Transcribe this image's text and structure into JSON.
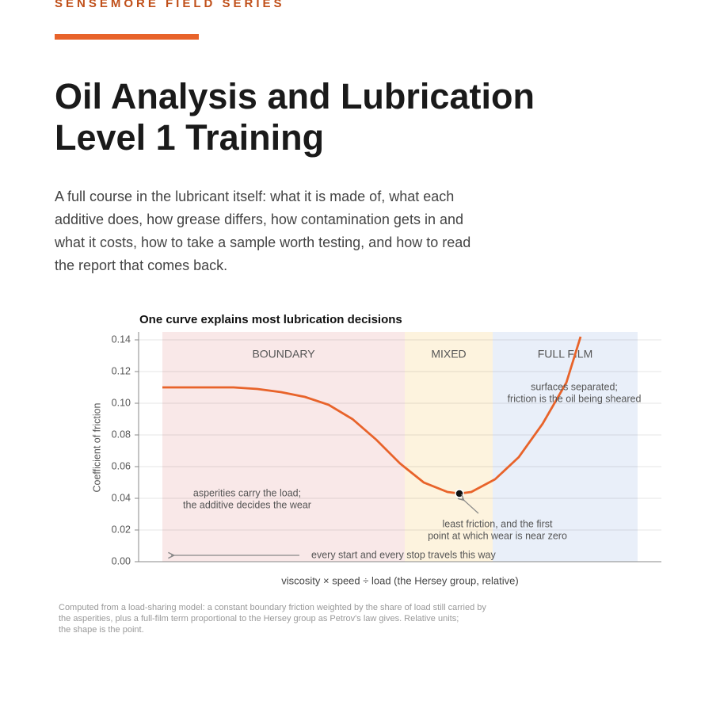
{
  "header": {
    "kicker": "SENSEMORE FIELD SERIES",
    "title_lines": [
      "Oil Analysis and Lubrication",
      "Level 1 Training"
    ],
    "lede_lines": [
      "A full course in the lubricant itself: what it is made of, what each",
      "additive does, how grease differs, how contamination gets in and",
      "what it costs, how to take a sample worth testing, and how to read",
      "the report that comes back."
    ]
  },
  "chart_data": {
    "type": "line",
    "title": "One curve explains most lubrication decisions",
    "y_label": "Coefficient of friction",
    "x_label": "viscosity × speed ÷ load  (the Hersey group, relative)",
    "xlim": [
      0,
      11
    ],
    "ylim": [
      0,
      0.145
    ],
    "yticks": [
      {
        "value": 0,
        "label": "0.00"
      },
      0.02,
      0.04,
      0.06,
      0.08,
      {
        "value": 0.1,
        "label": "0.10"
      },
      0.12,
      0.14
    ],
    "grid": true,
    "x": [
      0.5,
      1,
      1.5,
      2,
      2.5,
      3,
      3.5,
      4,
      4.5,
      5,
      5.5,
      6,
      6.5,
      6.75,
      7,
      7.5,
      8,
      8.5,
      9,
      9.3
    ],
    "series": [
      {
        "name": "Coefficient of friction",
        "color": "#e8632a",
        "values": [
          0.11,
          0.11,
          0.11,
          0.11,
          0.109,
          0.107,
          0.104,
          0.099,
          0.09,
          0.077,
          0.062,
          0.05,
          0.044,
          0.043,
          0.044,
          0.052,
          0.066,
          0.087,
          0.113,
          0.142
        ]
      }
    ],
    "highlight": {
      "x": 6.75,
      "y": 0.043
    },
    "regions": [
      {
        "label": "BOUNDARY",
        "from": 0.5,
        "to": 5.6,
        "color": "#f9e8e8"
      },
      {
        "label": "MIXED",
        "from": 5.6,
        "to": 7.45,
        "color": "#fdf3de"
      },
      {
        "label": "FULL FILM",
        "from": 7.45,
        "to": 10.5,
        "color": "#e9eff9"
      }
    ],
    "annotations": [
      {
        "lines": [
          "surfaces separated;",
          "friction is the oil being sheared"
        ]
      },
      {
        "lines": [
          "asperities carry the load;",
          "the additive decides the wear"
        ]
      },
      {
        "lines": [
          "least friction, and the first",
          "point at which wear is near zero"
        ]
      },
      {
        "lines": [
          "every start and every stop travels this way"
        ]
      }
    ],
    "footnote_lines": [
      "Computed from a load-sharing model: a constant boundary friction weighted by the share of load still carried by",
      "the asperities, plus a full-film term proportional to the Hersey group as Petrov's law gives. Relative units;",
      "the shape is the point."
    ]
  }
}
